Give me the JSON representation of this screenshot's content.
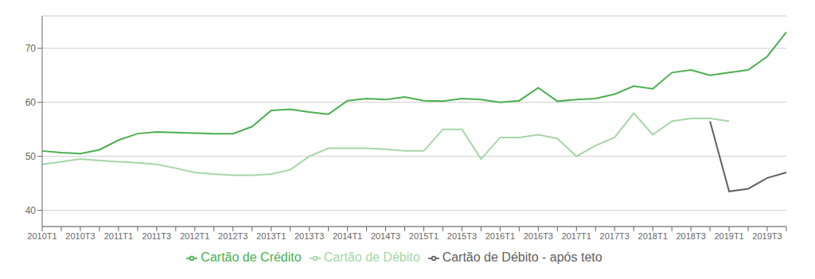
{
  "chart_data": {
    "type": "line",
    "categories": [
      "2010T1",
      null,
      "2010T3",
      null,
      "2011T1",
      null,
      "2011T3",
      null,
      "2012T1",
      null,
      "2012T3",
      null,
      "2013T1",
      null,
      "2013T3",
      null,
      "2014T1",
      null,
      "2014T3",
      null,
      "2015T1",
      null,
      "2015T3",
      null,
      "2016T1",
      null,
      "2016T3",
      null,
      "2017T1",
      null,
      "2017T3",
      null,
      "2018T1",
      null,
      "2018T3",
      null,
      "2019T1",
      null,
      "2019T3",
      null
    ],
    "series": [
      {
        "name": "Cartão de Crédito",
        "color": "#4caf50",
        "values": [
          51.0,
          50.7,
          50.5,
          51.2,
          53.0,
          54.2,
          54.5,
          54.4,
          54.3,
          54.2,
          54.2,
          55.5,
          58.5,
          58.7,
          58.2,
          57.8,
          60.3,
          60.7,
          60.5,
          61.0,
          60.3,
          60.2,
          60.7,
          60.5,
          60.0,
          60.3,
          62.7,
          60.2,
          60.5,
          60.7,
          61.5,
          63.0,
          62.5,
          65.5,
          66.0,
          65.0,
          65.5,
          66.0,
          68.5,
          73.0
        ]
      },
      {
        "name": "Cartão de Débito",
        "color": "#a5d6a7",
        "values": [
          48.5,
          49.0,
          49.5,
          49.2,
          49.0,
          48.8,
          48.5,
          47.8,
          47.0,
          46.7,
          46.5,
          46.5,
          46.7,
          47.5,
          50.0,
          51.5,
          51.5,
          51.5,
          51.3,
          51.0,
          51.0,
          55.0,
          55.0,
          49.5,
          53.5,
          53.5,
          54.0,
          53.3,
          50.0,
          52.0,
          53.5,
          58.0,
          54.0,
          56.5,
          57.0,
          57.0,
          56.5,
          null,
          null,
          null
        ]
      },
      {
        "name": "Cartão de Débito - após teto",
        "color": "#616161",
        "values": [
          null,
          null,
          null,
          null,
          null,
          null,
          null,
          null,
          null,
          null,
          null,
          null,
          null,
          null,
          null,
          null,
          null,
          null,
          null,
          null,
          null,
          null,
          null,
          null,
          null,
          null,
          null,
          null,
          null,
          null,
          null,
          null,
          null,
          null,
          null,
          56.5,
          43.5,
          44.0,
          46.0,
          47.0
        ]
      }
    ],
    "ylim": [
      37,
      76
    ],
    "yticks": [
      40,
      50,
      60,
      70
    ],
    "grid": true,
    "legend": "bottom"
  }
}
